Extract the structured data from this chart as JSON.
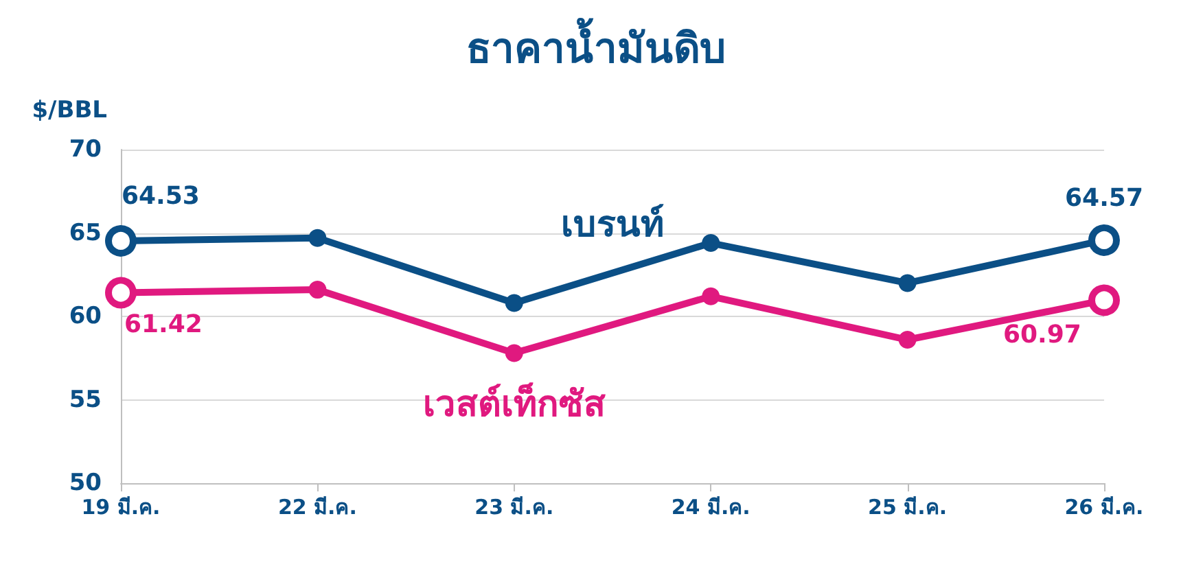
{
  "chart_data": {
    "type": "line",
    "title": "ธาคาน้ำมันดิบ",
    "ylabel": "$/BBL",
    "categories": [
      "19 มี.ค.",
      "22 มี.ค.",
      "23 มี.ค.",
      "24 มี.ค.",
      "25 มี.ค.",
      "26 มี.ค."
    ],
    "series": [
      {
        "name": "เบรนท์",
        "color": "#0b4f86",
        "values": [
          64.53,
          64.7,
          60.8,
          64.4,
          62.0,
          64.57
        ],
        "value_labels": [
          "64.53",
          null,
          null,
          null,
          null,
          "64.57"
        ]
      },
      {
        "name": "เวสต์เท็กซัส",
        "color": "#e0197f",
        "values": [
          61.42,
          61.6,
          57.8,
          61.2,
          58.6,
          60.97
        ],
        "value_labels": [
          "61.42",
          null,
          null,
          null,
          null,
          "60.97"
        ]
      }
    ],
    "ylim": [
      50,
      70
    ],
    "yticks": [
      50,
      55,
      60,
      65,
      70
    ],
    "grid": "y",
    "legend": false,
    "marker": "circle",
    "line_style": "solid"
  }
}
